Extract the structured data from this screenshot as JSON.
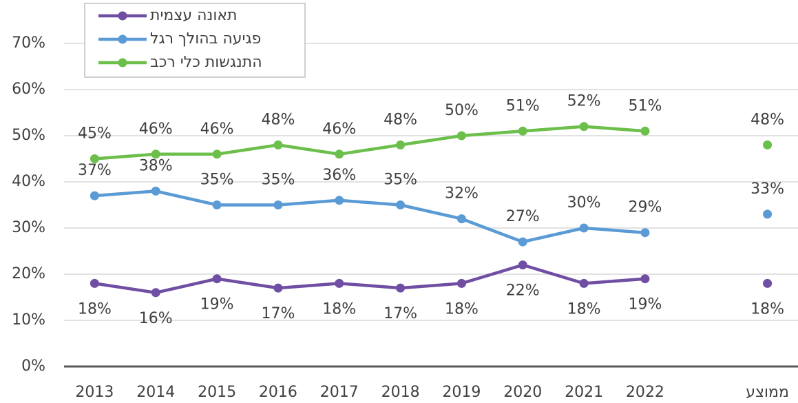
{
  "chart_data": {
    "type": "line",
    "categories": [
      "2013",
      "2014",
      "2015",
      "2016",
      "2017",
      "2018",
      "2019",
      "2020",
      "2021",
      "2022",
      null,
      "ממוצע"
    ],
    "series": [
      {
        "name": "תאונה עצמית",
        "color": "#6f4ea3",
        "values": [
          18,
          16,
          19,
          17,
          18,
          17,
          18,
          22,
          18,
          19,
          null,
          18
        ],
        "value_labels": [
          "18%",
          "16%",
          "19%",
          "17%",
          "18%",
          "17%",
          "18%",
          "22%",
          "18%",
          "19%",
          null,
          "18%"
        ]
      },
      {
        "name": "פגיעה בהולך רגל",
        "color": "#5b9bd5",
        "values": [
          37,
          38,
          35,
          35,
          36,
          35,
          32,
          27,
          30,
          29,
          null,
          33
        ],
        "value_labels": [
          "37%",
          "38%",
          "35%",
          "35%",
          "36%",
          "35%",
          "32%",
          "27%",
          "30%",
          "29%",
          null,
          "33%"
        ]
      },
      {
        "name": "התנגשות כלי רכב",
        "color": "#6cbf4b",
        "values": [
          45,
          46,
          46,
          48,
          46,
          48,
          50,
          51,
          52,
          51,
          null,
          48
        ],
        "value_labels": [
          "45%",
          "46%",
          "46%",
          "48%",
          "46%",
          "48%",
          "50%",
          "51%",
          "52%",
          "51%",
          null,
          "48%"
        ]
      }
    ],
    "ylim": [
      0,
      70
    ],
    "yticks": [
      {
        "value": 0,
        "label": "0%"
      },
      {
        "value": 10,
        "label": "10%"
      },
      {
        "value": 20,
        "label": "20%"
      },
      {
        "value": 30,
        "label": "30%"
      },
      {
        "value": 40,
        "label": "40%"
      },
      {
        "value": 50,
        "label": "50%"
      },
      {
        "value": 60,
        "label": "60%"
      },
      {
        "value": 70,
        "label": "70%"
      }
    ],
    "grid": true,
    "legend": "top-left"
  }
}
